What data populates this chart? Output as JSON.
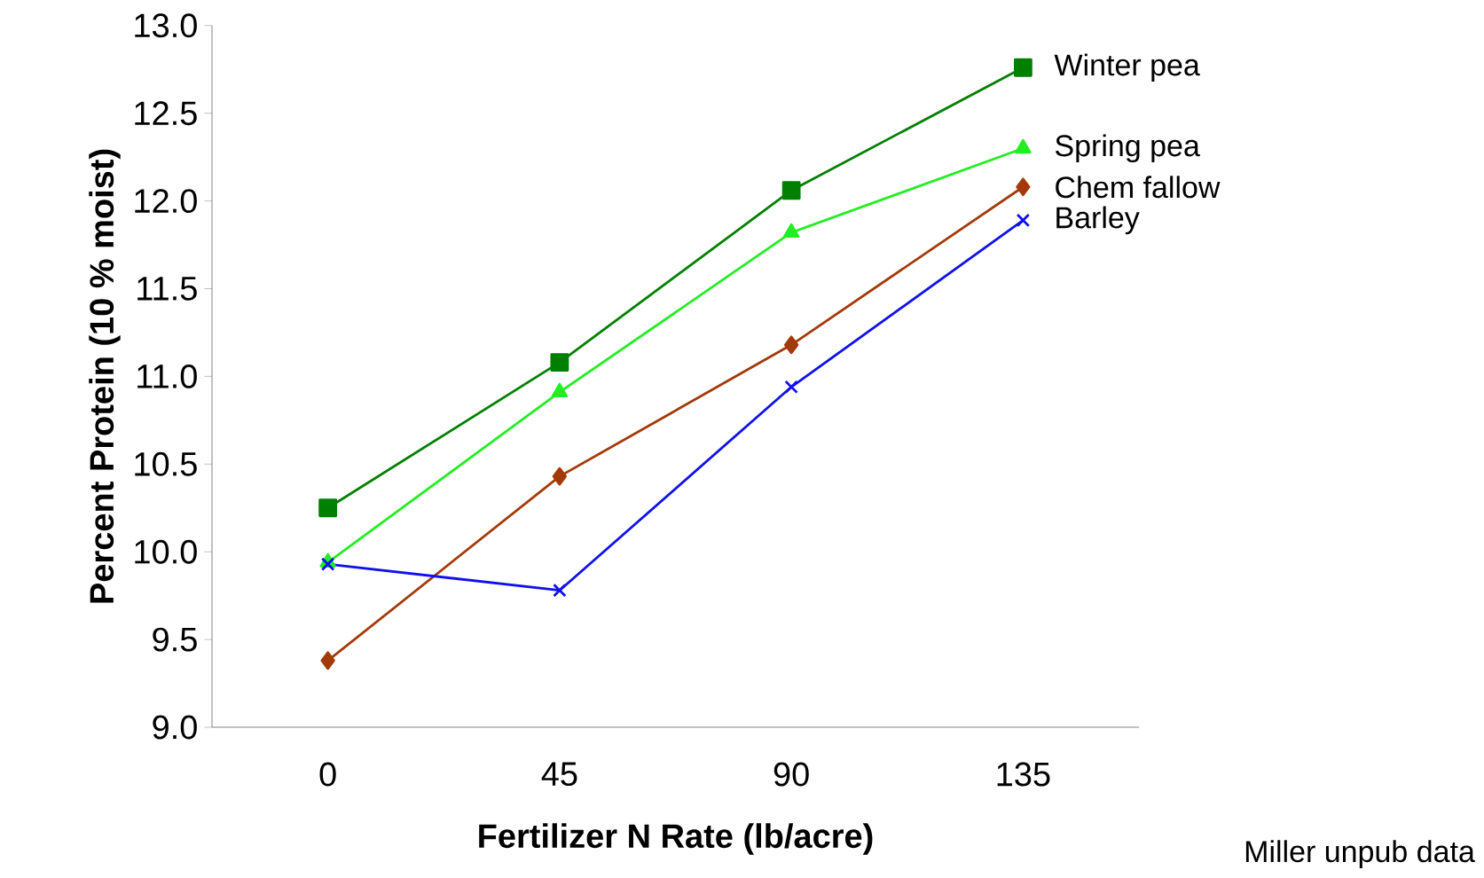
{
  "chart_data": {
    "type": "line",
    "xlabel": "Fertilizer N Rate (lb/acre)",
    "ylabel": "Percent Protein (10 % moist)",
    "categories": [
      "0",
      "45",
      "90",
      "135"
    ],
    "series": [
      {
        "name": "Winter pea",
        "color": "#008000",
        "marker": "square",
        "values": [
          10.25,
          11.08,
          12.06,
          12.76
        ]
      },
      {
        "name": "Spring pea",
        "color": "#22ee22",
        "marker": "triangle",
        "values": [
          9.94,
          10.91,
          11.82,
          12.3
        ]
      },
      {
        "name": "Chem fallow",
        "color": "#a33a0a",
        "marker": "diamond",
        "values": [
          9.38,
          10.43,
          11.18,
          12.08
        ]
      },
      {
        "name": "Barley",
        "color": "#1010ee",
        "marker": "cross",
        "values": [
          9.93,
          9.78,
          10.94,
          11.89
        ]
      }
    ],
    "ylim": [
      9,
      13
    ],
    "yticks": [
      {
        "value": 9,
        "label": "9.0"
      },
      {
        "value": 9.5,
        "label": "9.5"
      },
      {
        "value": 10,
        "label": "10.0"
      },
      {
        "value": 10.5,
        "label": "10.5"
      },
      {
        "value": 11,
        "label": "11.0"
      },
      {
        "value": 11.5,
        "label": "11.5"
      },
      {
        "value": 12,
        "label": "12.0"
      },
      {
        "value": 12.5,
        "label": "12.5"
      },
      {
        "value": 13,
        "label": "13.0"
      }
    ],
    "line_style": "solid",
    "annotations": [
      "Miller unpub data"
    ]
  }
}
